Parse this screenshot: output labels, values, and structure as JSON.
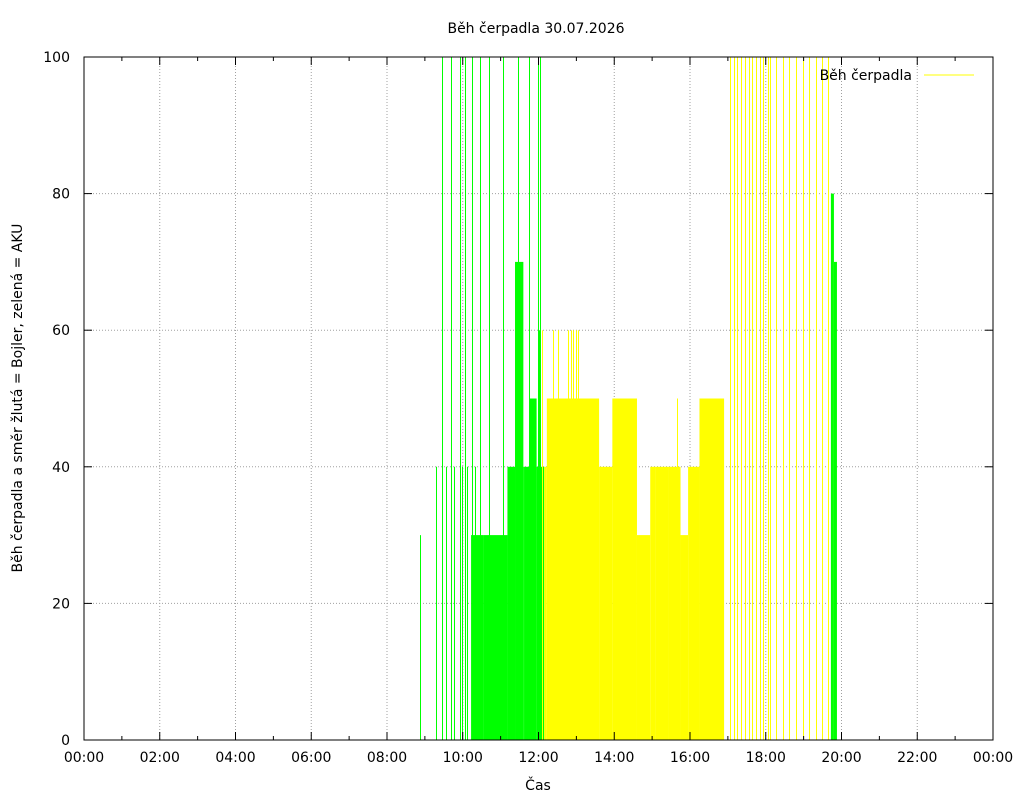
{
  "chart_data": {
    "type": "bar",
    "title": "Běh čerpadla 30.07.2026",
    "xlabel": "Čas",
    "ylabel": "Běh čerpadla a směr žlutá = Bojler, zelená = AKU",
    "xlim": [
      0,
      24
    ],
    "ylim": [
      0,
      100
    ],
    "grid": true,
    "legend": {
      "position": "top-right",
      "entries": [
        {
          "label": "Běh čerpadla",
          "color": "#ffff00"
        }
      ]
    },
    "xticks": [
      {
        "value": 0,
        "label": "00:00"
      },
      {
        "value": 2,
        "label": "02:00"
      },
      {
        "value": 4,
        "label": "04:00"
      },
      {
        "value": 6,
        "label": "06:00"
      },
      {
        "value": 8,
        "label": "08:00"
      },
      {
        "value": 10,
        "label": "10:00"
      },
      {
        "value": 12,
        "label": "12:00"
      },
      {
        "value": 14,
        "label": "14:00"
      },
      {
        "value": 16,
        "label": "16:00"
      },
      {
        "value": 18,
        "label": "18:00"
      },
      {
        "value": 20,
        "label": "20:00"
      },
      {
        "value": 22,
        "label": "22:00"
      },
      {
        "value": 24,
        "label": "00:00"
      }
    ],
    "yticks": [
      {
        "value": 0,
        "label": "0"
      },
      {
        "value": 20,
        "label": "20"
      },
      {
        "value": 40,
        "label": "40"
      },
      {
        "value": 60,
        "label": "60"
      },
      {
        "value": 80,
        "label": "80"
      },
      {
        "value": 100,
        "label": "100"
      }
    ],
    "series": [
      {
        "name": "AKU",
        "color": "#00ff00",
        "spikes": [
          [
            8.88,
            30
          ],
          [
            9.3,
            40
          ],
          [
            9.45,
            100
          ],
          [
            9.55,
            40
          ],
          [
            9.68,
            100
          ],
          [
            9.78,
            40
          ],
          [
            9.92,
            100
          ],
          [
            9.98,
            40
          ],
          [
            10.05,
            100
          ],
          [
            10.12,
            40
          ],
          [
            10.25,
            100
          ],
          [
            10.32,
            40
          ],
          [
            10.45,
            100
          ],
          [
            10.7,
            100
          ],
          [
            11.05,
            100
          ],
          [
            11.45,
            100
          ],
          [
            11.75,
            100
          ],
          [
            11.98,
            100
          ],
          [
            12.02,
            60
          ],
          [
            12.05,
            100
          ]
        ],
        "blocks": [
          {
            "from": 10.22,
            "to": 10.55,
            "value": 30
          },
          {
            "from": 10.55,
            "to": 11.18,
            "value": 30
          },
          {
            "from": 11.18,
            "to": 11.38,
            "value": 40
          },
          {
            "from": 11.38,
            "to": 11.6,
            "value": 70
          },
          {
            "from": 11.6,
            "to": 11.62,
            "value": 40
          },
          {
            "from": 11.62,
            "to": 11.75,
            "value": 40
          },
          {
            "from": 11.75,
            "to": 11.95,
            "value": 50
          },
          {
            "from": 11.95,
            "to": 12.15,
            "value": 40
          },
          {
            "from": 19.72,
            "to": 19.8,
            "value": 80
          },
          {
            "from": 19.8,
            "to": 19.88,
            "value": 70
          }
        ]
      },
      {
        "name": "Bojler",
        "color": "#ffff00",
        "spikes": [
          [
            12.1,
            60
          ],
          [
            12.22,
            50
          ],
          [
            12.38,
            60
          ],
          [
            12.52,
            60
          ],
          [
            12.65,
            50
          ],
          [
            12.78,
            60
          ],
          [
            12.85,
            60
          ],
          [
            12.9,
            60
          ],
          [
            13.0,
            60
          ],
          [
            13.05,
            60
          ],
          [
            13.28,
            50
          ],
          [
            13.38,
            50
          ],
          [
            13.48,
            50
          ],
          [
            13.58,
            50
          ],
          [
            13.62,
            40
          ],
          [
            15.65,
            50
          ],
          [
            17.05,
            100
          ],
          [
            17.15,
            100
          ],
          [
            17.25,
            100
          ],
          [
            17.35,
            100
          ],
          [
            17.45,
            100
          ],
          [
            17.55,
            100
          ],
          [
            17.65,
            100
          ],
          [
            17.75,
            100
          ],
          [
            17.85,
            100
          ],
          [
            17.92,
            100
          ],
          [
            18.05,
            100
          ],
          [
            18.12,
            100
          ],
          [
            18.28,
            100
          ],
          [
            18.45,
            100
          ],
          [
            18.62,
            100
          ],
          [
            18.8,
            100
          ],
          [
            18.98,
            100
          ],
          [
            19.15,
            100
          ],
          [
            19.32,
            100
          ],
          [
            19.48,
            100
          ],
          [
            19.65,
            100
          ]
        ],
        "blocks": [
          {
            "from": 12.15,
            "to": 12.22,
            "value": 40
          },
          {
            "from": 12.22,
            "to": 13.0,
            "value": 50
          },
          {
            "from": 13.0,
            "to": 13.6,
            "value": 50
          },
          {
            "from": 13.6,
            "to": 13.95,
            "value": 40
          },
          {
            "from": 13.95,
            "to": 14.6,
            "value": 50
          },
          {
            "from": 14.6,
            "to": 14.95,
            "value": 30
          },
          {
            "from": 14.95,
            "to": 15.1,
            "value": 40
          },
          {
            "from": 15.1,
            "to": 15.42,
            "value": 40
          },
          {
            "from": 15.42,
            "to": 15.75,
            "value": 40
          },
          {
            "from": 15.75,
            "to": 15.95,
            "value": 30
          },
          {
            "from": 15.95,
            "to": 16.25,
            "value": 40
          },
          {
            "from": 16.25,
            "to": 16.9,
            "value": 50
          }
        ]
      }
    ]
  }
}
